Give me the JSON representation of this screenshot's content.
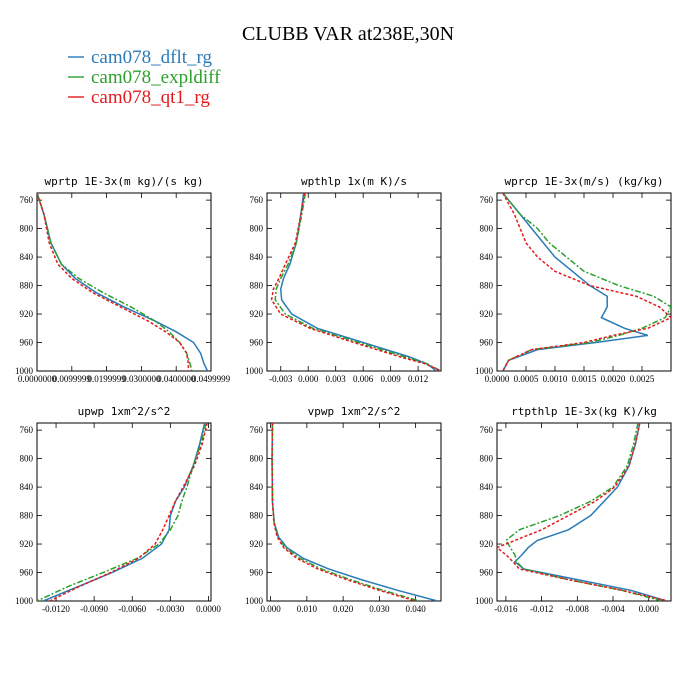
{
  "figure": {
    "title": "CLUBB VAR at238E,30N",
    "legend": [
      {
        "label": "cam078_dflt_rg",
        "color": "#2b7bb9",
        "dash": "none"
      },
      {
        "label": "cam078_expldiff",
        "color": "#2ca02c",
        "dash": "6,2,2,2"
      },
      {
        "label": "cam078_qt1_rg",
        "color": "#e41a1c",
        "dash": "3,2"
      }
    ]
  },
  "chart_data": [
    {
      "type": "line",
      "title": "wprtp  1E-3x(m kg)/(s kg)",
      "xlim": [
        0,
        0.05
      ],
      "ylim": [
        1000,
        750
      ],
      "xticks": [
        "0.0000000",
        "0.0099999",
        "0.0199999",
        "0.0300000",
        "0.0400000",
        "0.0499999"
      ],
      "yticks": [
        "760",
        "800",
        "840",
        "880",
        "920",
        "960",
        "1000"
      ],
      "y": [
        750,
        780,
        820,
        850,
        870,
        890,
        910,
        930,
        945,
        960,
        975,
        990,
        1000
      ],
      "series": [
        {
          "name": "cam078_dflt_rg",
          "x": [
            0.0,
            0.002,
            0.004,
            0.007,
            0.011,
            0.017,
            0.025,
            0.034,
            0.04,
            0.045,
            0.047,
            0.048,
            0.049
          ]
        },
        {
          "name": "cam078_expldiff",
          "x": [
            0.0,
            0.002,
            0.004,
            0.007,
            0.012,
            0.019,
            0.027,
            0.034,
            0.038,
            0.041,
            0.043,
            0.044,
            0.0445
          ]
        },
        {
          "name": "cam078_qt1_rg",
          "x": [
            0.0,
            0.002,
            0.0035,
            0.006,
            0.01,
            0.016,
            0.024,
            0.032,
            0.037,
            0.041,
            0.043,
            0.0435,
            0.0435
          ]
        }
      ]
    },
    {
      "type": "line",
      "title": "wpthlp  1x(m K)/s",
      "xlim": [
        -0.0045,
        0.0145
      ],
      "ylim": [
        1000,
        750
      ],
      "xticks": [
        "-0.003",
        "0.000",
        "0.003",
        "0.006",
        "0.009",
        "0.012"
      ],
      "yticks": [
        "760",
        "800",
        "840",
        "880",
        "920",
        "960",
        "1000"
      ],
      "y": [
        750,
        780,
        820,
        850,
        870,
        885,
        900,
        920,
        940,
        960,
        980,
        990,
        1000
      ],
      "series": [
        {
          "name": "cam078_dflt_rg",
          "x": [
            -0.0005,
            -0.0008,
            -0.0013,
            -0.002,
            -0.0027,
            -0.003,
            -0.0029,
            -0.0018,
            0.001,
            0.006,
            0.011,
            0.013,
            0.014
          ]
        },
        {
          "name": "cam078_expldiff",
          "x": [
            -0.0003,
            -0.0007,
            -0.0013,
            -0.0022,
            -0.003,
            -0.0035,
            -0.0036,
            -0.0025,
            0.0005,
            0.0055,
            0.0105,
            0.013,
            0.0145
          ]
        },
        {
          "name": "cam078_qt1_rg",
          "x": [
            -0.0004,
            -0.0008,
            -0.0014,
            -0.0025,
            -0.0032,
            -0.0038,
            -0.004,
            -0.003,
            0.0002,
            0.005,
            0.01,
            0.0128,
            0.0145
          ]
        }
      ]
    },
    {
      "type": "line",
      "title": "wprcp  1E-3x(m/s) (kg/kg)",
      "xlim": [
        0,
        0.003
      ],
      "ylim": [
        1000,
        750
      ],
      "xticks": [
        "0.0000",
        "0.0005",
        "0.0010",
        "0.0015",
        "0.0020",
        "0.0025"
      ],
      "yticks": [
        "760",
        "800",
        "840",
        "880",
        "920",
        "960",
        "1000"
      ],
      "y": [
        750,
        780,
        800,
        820,
        840,
        860,
        880,
        895,
        910,
        925,
        940,
        950,
        960,
        970,
        985,
        1000
      ],
      "series": [
        {
          "name": "cam078_dflt_rg",
          "x": [
            0.0001,
            0.0004,
            0.0006,
            0.0008,
            0.001,
            0.0013,
            0.0016,
            0.0019,
            0.0019,
            0.0018,
            0.0022,
            0.0026,
            0.0017,
            0.0007,
            0.0002,
            0.0001
          ]
        },
        {
          "name": "cam078_expldiff",
          "x": [
            0.0001,
            0.0004,
            0.0007,
            0.0009,
            0.0012,
            0.0015,
            0.0021,
            0.0027,
            0.003,
            0.0029,
            0.0025,
            0.0021,
            0.0016,
            0.0006,
            0.0002,
            0.0001
          ]
        },
        {
          "name": "cam078_qt1_rg",
          "x": [
            0.0001,
            0.0003,
            0.0004,
            0.0005,
            0.0007,
            0.001,
            0.0016,
            0.0024,
            0.0028,
            0.003,
            0.0026,
            0.002,
            0.0015,
            0.0006,
            0.0002,
            0.0001
          ]
        }
      ]
    },
    {
      "type": "line",
      "title": "upwp  1xm^2/s^2",
      "xlim": [
        -0.0135,
        0.0002
      ],
      "ylim": [
        1000,
        750
      ],
      "xticks": [
        "-0.0120",
        "-0.0090",
        "-0.0060",
        "-0.0030",
        "0.0000"
      ],
      "yticks": [
        "760",
        "800",
        "840",
        "880",
        "920",
        "960",
        "1000"
      ],
      "y": [
        750,
        780,
        810,
        840,
        860,
        880,
        900,
        920,
        940,
        960,
        980,
        1000
      ],
      "series": [
        {
          "name": "cam078_dflt_rg",
          "x": [
            -0.0003,
            -0.0007,
            -0.0012,
            -0.0019,
            -0.0026,
            -0.003,
            -0.0031,
            -0.0037,
            -0.0052,
            -0.0076,
            -0.0103,
            -0.013
          ]
        },
        {
          "name": "cam078_expldiff",
          "x": [
            -0.0002,
            -0.0006,
            -0.0012,
            -0.0017,
            -0.0021,
            -0.0024,
            -0.003,
            -0.0039,
            -0.0056,
            -0.0083,
            -0.0111,
            -0.0135
          ]
        },
        {
          "name": "cam078_qt1_rg",
          "x": [
            -0.0001,
            -0.0005,
            -0.0011,
            -0.002,
            -0.0026,
            -0.0031,
            -0.0036,
            -0.0042,
            -0.0055,
            -0.0077,
            -0.0102,
            -0.0125
          ]
        }
      ]
    },
    {
      "type": "line",
      "title": "vpwp  1xm^2/s^2",
      "xlim": [
        -0.001,
        0.047
      ],
      "ylim": [
        1000,
        750
      ],
      "xticks": [
        "0.000",
        "0.010",
        "0.020",
        "0.030",
        "0.040"
      ],
      "yticks": [
        "760",
        "800",
        "840",
        "880",
        "920",
        "960",
        "1000"
      ],
      "y": [
        750,
        800,
        860,
        890,
        910,
        925,
        940,
        955,
        970,
        985,
        1000
      ],
      "series": [
        {
          "name": "cam078_dflt_rg",
          "x": [
            0.0005,
            0.0004,
            0.0005,
            0.001,
            0.0022,
            0.0045,
            0.009,
            0.016,
            0.025,
            0.035,
            0.046
          ]
        },
        {
          "name": "cam078_expldiff",
          "x": [
            0.0005,
            0.0004,
            0.0005,
            0.001,
            0.002,
            0.004,
            0.008,
            0.014,
            0.022,
            0.031,
            0.041
          ]
        },
        {
          "name": "cam078_qt1_rg",
          "x": [
            0.0005,
            0.0004,
            0.0005,
            0.0009,
            0.0018,
            0.0036,
            0.0072,
            0.013,
            0.021,
            0.03,
            0.04
          ]
        }
      ]
    },
    {
      "type": "line",
      "title": "rtpthlp  1E-3x(kg K)/kg",
      "xlim": [
        -0.017,
        0.0025
      ],
      "ylim": [
        1000,
        750
      ],
      "xticks": [
        "-0.016",
        "-0.012",
        "-0.008",
        "-0.004",
        "0.000"
      ],
      "yticks": [
        "760",
        "800",
        "840",
        "880",
        "920",
        "960",
        "1000"
      ],
      "y": [
        750,
        780,
        810,
        840,
        860,
        880,
        900,
        915,
        925,
        935,
        945,
        955,
        970,
        985,
        1000
      ],
      "series": [
        {
          "name": "cam078_dflt_rg",
          "x": [
            -0.001,
            -0.0015,
            -0.0022,
            -0.0035,
            -0.005,
            -0.0065,
            -0.009,
            -0.0125,
            -0.0135,
            -0.0142,
            -0.015,
            -0.014,
            -0.008,
            -0.002,
            0.002
          ]
        },
        {
          "name": "cam078_expldiff",
          "x": [
            -0.0012,
            -0.0017,
            -0.0024,
            -0.004,
            -0.0065,
            -0.01,
            -0.0145,
            -0.016,
            -0.0155,
            -0.015,
            -0.0148,
            -0.014,
            -0.009,
            -0.003,
            0.0015
          ]
        },
        {
          "name": "cam078_qt1_rg",
          "x": [
            -0.001,
            -0.0015,
            -0.0022,
            -0.0038,
            -0.006,
            -0.009,
            -0.012,
            -0.015,
            -0.017,
            -0.016,
            -0.0152,
            -0.0145,
            -0.009,
            -0.003,
            0.0022
          ]
        }
      ]
    }
  ]
}
